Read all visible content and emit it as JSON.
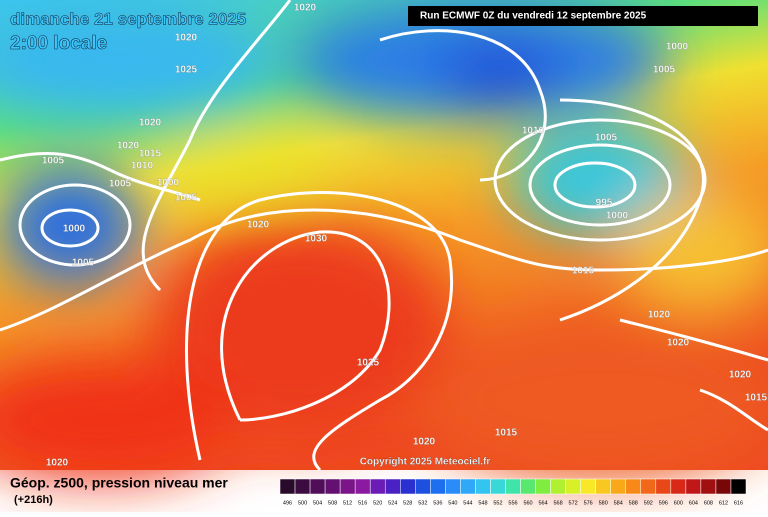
{
  "header": {
    "date": "dimanche 21 septembre 2025",
    "time": "2:00 locale",
    "run": "Run ECMWF 0Z du vendredi 12 septembre 2025"
  },
  "isobar_labels": [
    1020,
    1020,
    1025,
    1020,
    1020,
    1015,
    1010,
    1005,
    1005,
    1000,
    1005,
    1000,
    1005,
    1020,
    1030,
    1025,
    1020,
    1015,
    1020,
    1000,
    1005,
    1010,
    1005,
    995,
    1000,
    1015,
    1020,
    1020,
    1020,
    1015
  ],
  "copyright": "Copyright 2025 Meteociel.fr",
  "legend": {
    "title": "Géop. z500, pression niveau mer",
    "lead": "(+216h)",
    "scale": [
      496,
      500,
      504,
      508,
      512,
      516,
      520,
      524,
      528,
      532,
      536,
      540,
      544,
      548,
      552,
      556,
      560,
      564,
      568,
      572,
      576,
      580,
      584,
      588,
      592,
      596,
      600,
      604,
      608,
      612,
      616
    ]
  }
}
